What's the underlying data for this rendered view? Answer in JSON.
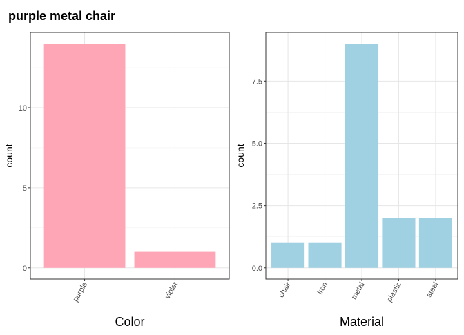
{
  "title": "purple metal chair",
  "chart_data": [
    {
      "type": "bar",
      "xlabel": "Color",
      "ylabel": "count",
      "categories": [
        "purple",
        "violet"
      ],
      "values": [
        14,
        1
      ],
      "ylim": [
        -0.7,
        14.7
      ],
      "yticks": [
        0,
        5,
        10
      ],
      "ytick_labels": [
        "0",
        "5",
        "10"
      ],
      "bar_color": "#FFA6B6",
      "grid": true,
      "x_tick_rotation": "angled"
    },
    {
      "type": "bar",
      "xlabel": "Material",
      "ylabel": "count",
      "categories": [
        "chair",
        "iron",
        "metal",
        "plastic",
        "steel"
      ],
      "values": [
        1,
        1,
        9,
        2,
        2
      ],
      "ylim": [
        -0.45,
        9.45
      ],
      "yticks": [
        0,
        2.5,
        5,
        7.5
      ],
      "ytick_labels": [
        "0.0",
        "2.5",
        "5.0",
        "7.5"
      ],
      "bar_color": "#A0D1E3",
      "grid": true,
      "x_tick_rotation": "angled"
    }
  ]
}
